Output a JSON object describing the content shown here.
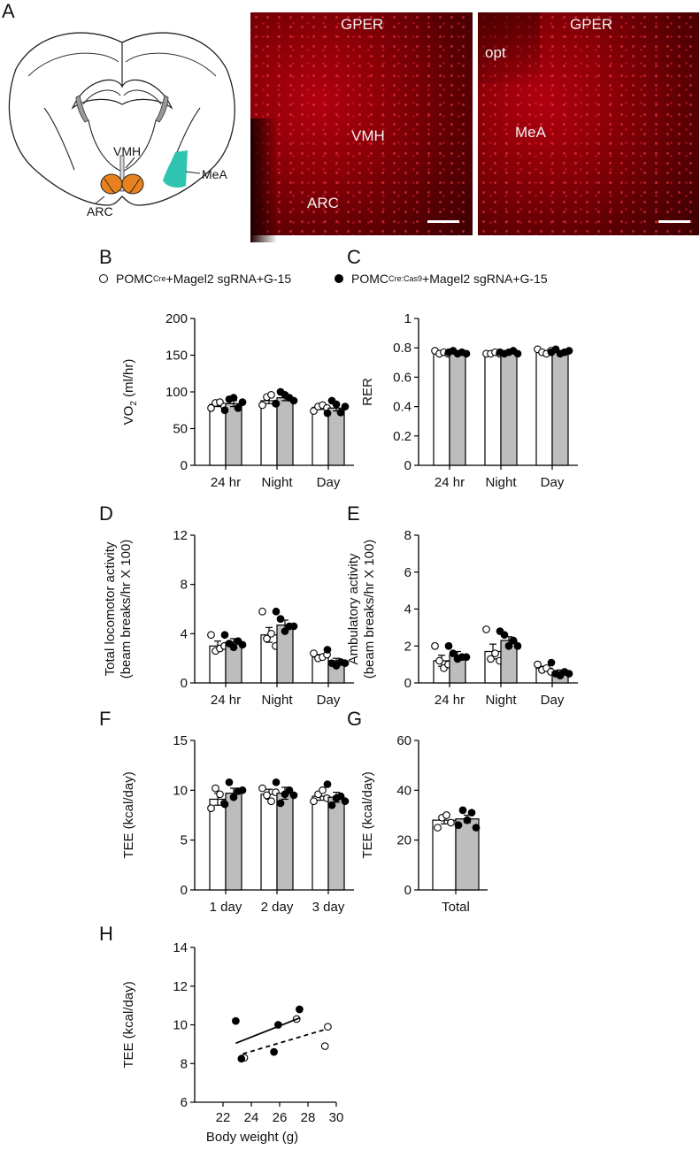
{
  "panels": {
    "A": "A",
    "B": "B",
    "C": "C",
    "D": "D",
    "E": "E",
    "F": "F",
    "G": "G",
    "H": "H"
  },
  "brain_labels": {
    "vmh": "VMH",
    "mea": "MeA",
    "arc": "ARC"
  },
  "micro1": {
    "title": "GPER",
    "vmh": "VMH",
    "arc": "ARC"
  },
  "micro2": {
    "title": "GPER",
    "opt": "opt",
    "mea": "MeA"
  },
  "legend": {
    "open_prefix": "POMC",
    "open_sup": "Cre",
    "open_suffix": "+Magel2 sgRNA+G-15",
    "filled_prefix": "POMC",
    "filled_sup": "Cre:Cas9",
    "filled_suffix": "+Magel2 sgRNA+G-15"
  },
  "colors": {
    "ctrl_bar": "#ffffff",
    "ko_bar": "#bdbdbd",
    "arc_fill": "#e8821e",
    "mea_fill": "#2ec4b0",
    "line": "#000000"
  },
  "chart_data": [
    {
      "id": "B",
      "type": "bar",
      "ylabel": "VO2 (ml/hr)",
      "ylim": [
        0,
        200
      ],
      "yticks": [
        0,
        50,
        100,
        150,
        200
      ],
      "categories": [
        "24 hr",
        "Night",
        "Day"
      ],
      "series": [
        {
          "name": "POMCCre+Magel2 sgRNA+G-15",
          "values": [
            83,
            88,
            79
          ],
          "sem": [
            3,
            4,
            3
          ],
          "points": [
            [
              78,
              85,
              86,
              80
            ],
            [
              82,
              93,
              96,
              84
            ],
            [
              74,
              80,
              82,
              78
            ]
          ]
        },
        {
          "name": "POMCCre:Cas9+Magel2 sgRNA+G-15",
          "values": [
            84,
            92,
            78
          ],
          "sem": [
            4,
            4,
            4
          ],
          "points": [
            [
              75,
              90,
              92,
              78,
              86
            ],
            [
              84,
              100,
              96,
              92,
              88
            ],
            [
              71,
              88,
              83,
              72,
              80
            ]
          ]
        }
      ]
    },
    {
      "id": "C",
      "type": "bar",
      "ylabel": "RER",
      "ylim": [
        0,
        1.0
      ],
      "yticks": [
        0,
        0.2,
        0.4,
        0.6,
        0.8,
        1.0
      ],
      "categories": [
        "24 hr",
        "Night",
        "Day"
      ],
      "series": [
        {
          "name": "POMCCre+Magel2 sgRNA+G-15",
          "values": [
            0.77,
            0.76,
            0.77
          ],
          "sem": [
            0.01,
            0.01,
            0.01
          ],
          "points": [
            [
              0.78,
              0.76,
              0.77,
              0.76
            ],
            [
              0.76,
              0.76,
              0.77,
              0.76
            ],
            [
              0.79,
              0.77,
              0.76,
              0.78
            ]
          ]
        },
        {
          "name": "POMCCre:Cas9+Magel2 sgRNA+G-15",
          "values": [
            0.77,
            0.77,
            0.77
          ],
          "sem": [
            0.01,
            0.01,
            0.01
          ],
          "points": [
            [
              0.77,
              0.78,
              0.76,
              0.77,
              0.76
            ],
            [
              0.77,
              0.76,
              0.77,
              0.78,
              0.76
            ],
            [
              0.77,
              0.79,
              0.76,
              0.77,
              0.78
            ]
          ]
        }
      ]
    },
    {
      "id": "D",
      "type": "bar",
      "ylabel": "Total locomotor activity (beam breaks/hr X 100)",
      "ylim": [
        0,
        12
      ],
      "yticks": [
        0,
        4,
        8,
        12
      ],
      "categories": [
        "24 hr",
        "Night",
        "Day"
      ],
      "series": [
        {
          "name": "POMCCre+Magel2 sgRNA+G-15",
          "values": [
            3.0,
            3.9,
            2.1
          ],
          "sem": [
            0.4,
            0.6,
            0.2
          ],
          "points": [
            [
              3.9,
              2.6,
              2.8,
              3.0
            ],
            [
              5.8,
              3.6,
              4.0,
              3.0
            ],
            [
              2.4,
              2.0,
              2.1,
              2.3
            ]
          ]
        },
        {
          "name": "POMCCre:Cas9+Magel2 sgRNA+G-15",
          "values": [
            3.3,
            4.7,
            1.8
          ],
          "sem": [
            0.3,
            0.4,
            0.2
          ],
          "points": [
            [
              3.9,
              3.2,
              2.9,
              3.4,
              3.1
            ],
            [
              5.8,
              5.2,
              4.2,
              4.6,
              4.6
            ],
            [
              2.7,
              1.6,
              1.4,
              1.7,
              1.6
            ]
          ]
        }
      ]
    },
    {
      "id": "E",
      "type": "bar",
      "ylabel": "Ambulatory activity (beam breaks/hr X 100)",
      "ylim": [
        0,
        8
      ],
      "yticks": [
        0,
        2,
        4,
        6,
        8
      ],
      "categories": [
        "24 hr",
        "Night",
        "Day"
      ],
      "series": [
        {
          "name": "POMCCre+Magel2 sgRNA+G-15",
          "values": [
            1.2,
            1.7,
            0.8
          ],
          "sem": [
            0.3,
            0.4,
            0.1
          ],
          "points": [
            [
              2.0,
              1.2,
              0.8,
              1.0
            ],
            [
              2.9,
              1.3,
              1.6,
              1.2
            ],
            [
              1.0,
              0.7,
              0.8,
              0.6
            ]
          ]
        },
        {
          "name": "POMCCre:Cas9+Magel2 sgRNA+G-15",
          "values": [
            1.5,
            2.3,
            0.6
          ],
          "sem": [
            0.2,
            0.2,
            0.1
          ],
          "points": [
            [
              2.0,
              1.6,
              1.3,
              1.4,
              1.4
            ],
            [
              2.8,
              2.6,
              2.0,
              2.3,
              2.0
            ],
            [
              1.1,
              0.5,
              0.4,
              0.6,
              0.5
            ]
          ]
        }
      ]
    },
    {
      "id": "F",
      "type": "bar",
      "ylabel": "TEE (kcal/day)",
      "ylim": [
        0,
        15
      ],
      "yticks": [
        0,
        5,
        10,
        15
      ],
      "categories": [
        "1 day",
        "2 day",
        "3 day"
      ],
      "series": [
        {
          "name": "POMCCre+Magel2 sgRNA+G-15",
          "values": [
            9.1,
            9.6,
            9.4
          ],
          "sem": [
            0.6,
            0.5,
            0.4
          ],
          "points": [
            [
              8.2,
              10.2,
              9.6,
              8.7
            ],
            [
              10.2,
              9.5,
              8.9,
              9.8
            ],
            [
              8.9,
              9.6,
              10.0,
              9.2
            ]
          ]
        },
        {
          "name": "POMCCre:Cas9+Magel2 sgRNA+G-15",
          "values": [
            9.7,
            9.7,
            9.3
          ],
          "sem": [
            0.5,
            0.6,
            0.5
          ],
          "points": [
            [
              8.6,
              10.8,
              9.3,
              9.9,
              10.0
            ],
            [
              10.8,
              8.7,
              9.6,
              10.0,
              9.5
            ],
            [
              10.6,
              8.5,
              9.2,
              9.4,
              8.9
            ]
          ]
        }
      ]
    },
    {
      "id": "G",
      "type": "bar",
      "ylabel": "TEE (kcal/day)",
      "ylim": [
        0,
        60
      ],
      "yticks": [
        0,
        20,
        40,
        60
      ],
      "categories": [
        "Total"
      ],
      "series": [
        {
          "name": "POMCCre+Magel2 sgRNA+G-15",
          "values": [
            28
          ],
          "sem": [
            1.5
          ],
          "points": [
            [
              25,
              29,
              30,
              27
            ]
          ]
        },
        {
          "name": "POMCCre:Cas9+Magel2 sgRNA+G-15",
          "values": [
            28.5
          ],
          "sem": [
            1.5
          ],
          "points": [
            [
              26,
              32,
              28,
              31,
              25
            ]
          ]
        }
      ]
    },
    {
      "id": "H",
      "type": "scatter",
      "xlabel": "Body weight (g)",
      "ylabel": "TEE (kcal/day)",
      "xlim": [
        20,
        30
      ],
      "ylim": [
        6,
        14
      ],
      "xticks": [
        22,
        24,
        26,
        28,
        30
      ],
      "yticks": [
        6,
        8,
        10,
        12,
        14
      ],
      "series": [
        {
          "name": "POMCCre+Magel2 sgRNA+G-15",
          "points": [
            [
              23.5,
              8.3
            ],
            [
              27.2,
              10.3
            ],
            [
              29.2,
              8.9
            ],
            [
              29.4,
              9.9
            ]
          ],
          "fit": [
            [
              23.4,
              8.5
            ],
            [
              29.4,
              9.8
            ]
          ]
        },
        {
          "name": "POMCCre:Cas9+Magel2 sgRNA+G-15",
          "points": [
            [
              22.9,
              10.2
            ],
            [
              23.3,
              8.25
            ],
            [
              25.6,
              8.6
            ],
            [
              25.9,
              10.0
            ],
            [
              27.4,
              10.8
            ]
          ],
          "fit": [
            [
              22.9,
              9.05
            ],
            [
              27.4,
              10.35
            ]
          ]
        }
      ]
    }
  ]
}
